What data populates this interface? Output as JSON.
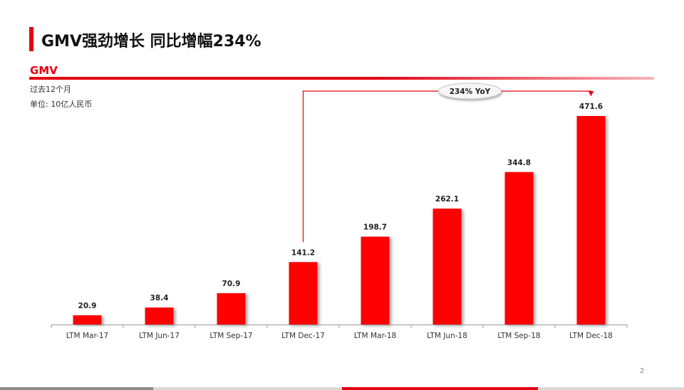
{
  "slide": {
    "title": "GMV强劲增长 同比增幅234%",
    "section_label": "GMV",
    "subtitle_period": "过去12个月",
    "subtitle_unit": "单位: 10亿人民币",
    "page_number": "2"
  },
  "colors": {
    "accent": "#e50012",
    "bar": "#ff0000",
    "footer_gray": "#8c8c8c",
    "footer_light": "#d9d9d9"
  },
  "chart_data": {
    "type": "bar",
    "categories": [
      "LTM Mar-17",
      "LTM Jun-17",
      "LTM Sep-17",
      "LTM Dec-17",
      "LTM Mar-18",
      "LTM Jun-18",
      "LTM Sep-18",
      "LTM Dec-18"
    ],
    "values": [
      20.9,
      38.4,
      70.9,
      141.2,
      198.7,
      262.1,
      344.8,
      471.6
    ],
    "value_labels": [
      "20.9",
      "38.4",
      "70.9",
      "141.2",
      "198.7",
      "262.1",
      "344.8",
      "471.6"
    ],
    "ylim": [
      0,
      471.6
    ],
    "grid": false,
    "annotation": {
      "text": "234% YoY",
      "from_category": "LTM Dec-17",
      "to_category": "LTM Dec-18"
    }
  }
}
